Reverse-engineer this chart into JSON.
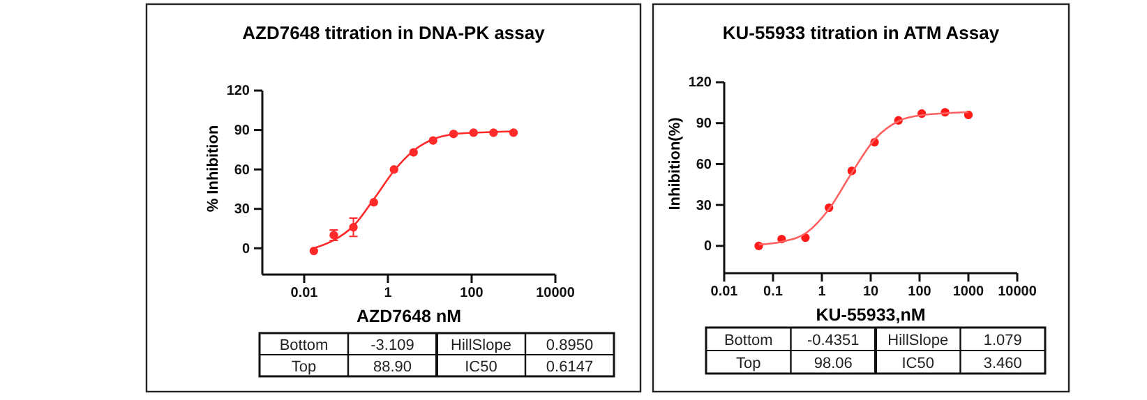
{
  "chart_data": [
    {
      "type": "scatter",
      "title": "AZD7648 titration in DNA-PK assay",
      "xlabel": "AZD7648 nM",
      "ylabel": "% Inhibition",
      "log": "x",
      "grid": false,
      "xlim": [
        0.001,
        10000
      ],
      "xticks": [
        0.01,
        1,
        100,
        10000
      ],
      "ylim": [
        -20,
        120
      ],
      "yticks": [
        0,
        30,
        60,
        90,
        120
      ],
      "series": [
        {
          "marker": "circle",
          "color": "#ff2a2a",
          "x": [
            0.017,
            0.051,
            0.15,
            0.46,
            1.4,
            4.1,
            12,
            37,
            111,
            333,
            1000
          ],
          "values": [
            -2,
            10,
            16,
            35,
            60,
            73,
            82,
            87,
            88,
            88,
            88
          ],
          "errors": [
            null,
            4,
            7,
            null,
            null,
            null,
            null,
            null,
            null,
            null,
            null
          ]
        },
        {
          "type": "line",
          "marker": "none",
          "color": "#ff2a2a",
          "x": [
            0.017,
            0.05,
            0.15,
            0.5,
            1.4,
            4,
            12,
            40,
            120,
            1000
          ],
          "values": [
            0,
            6,
            17,
            39,
            59,
            74,
            83,
            87,
            88,
            89
          ]
        }
      ],
      "annotations": [
        "Bottom",
        "-3.109",
        "HillSlope",
        "0.8950",
        "Top",
        "88.90",
        "IC50",
        "0.6147"
      ]
    },
    {
      "type": "scatter",
      "title": "KU-55933 titration in ATM Assay",
      "xlabel": "KU-55933,nM",
      "ylabel": "Inhibition(%)",
      "log": "x",
      "grid": false,
      "xlim": [
        0.01,
        10000
      ],
      "xticks": [
        0.01,
        0.1,
        1,
        10,
        100,
        1000,
        10000
      ],
      "ylim": [
        -20,
        120
      ],
      "yticks": [
        0,
        30,
        60,
        90,
        120
      ],
      "series": [
        {
          "marker": "circle",
          "color": "#ff1a1a",
          "x": [
            0.051,
            0.15,
            0.46,
            1.4,
            4.1,
            12,
            37,
            111,
            333,
            1000
          ],
          "values": [
            0,
            5,
            6,
            28,
            55,
            76,
            92,
            97,
            98,
            96
          ]
        },
        {
          "type": "line",
          "marker": "none",
          "color": "#ff6060",
          "x": [
            0.051,
            0.15,
            0.5,
            1.4,
            4,
            12,
            40,
            120,
            1000
          ],
          "values": [
            1,
            3,
            10,
            27,
            53,
            78,
            92,
            96,
            98
          ]
        }
      ],
      "annotations": [
        "Bottom",
        "-0.4351",
        "HillSlope",
        "1.079",
        "Top",
        "98.06",
        "IC50",
        "3.460"
      ]
    }
  ]
}
